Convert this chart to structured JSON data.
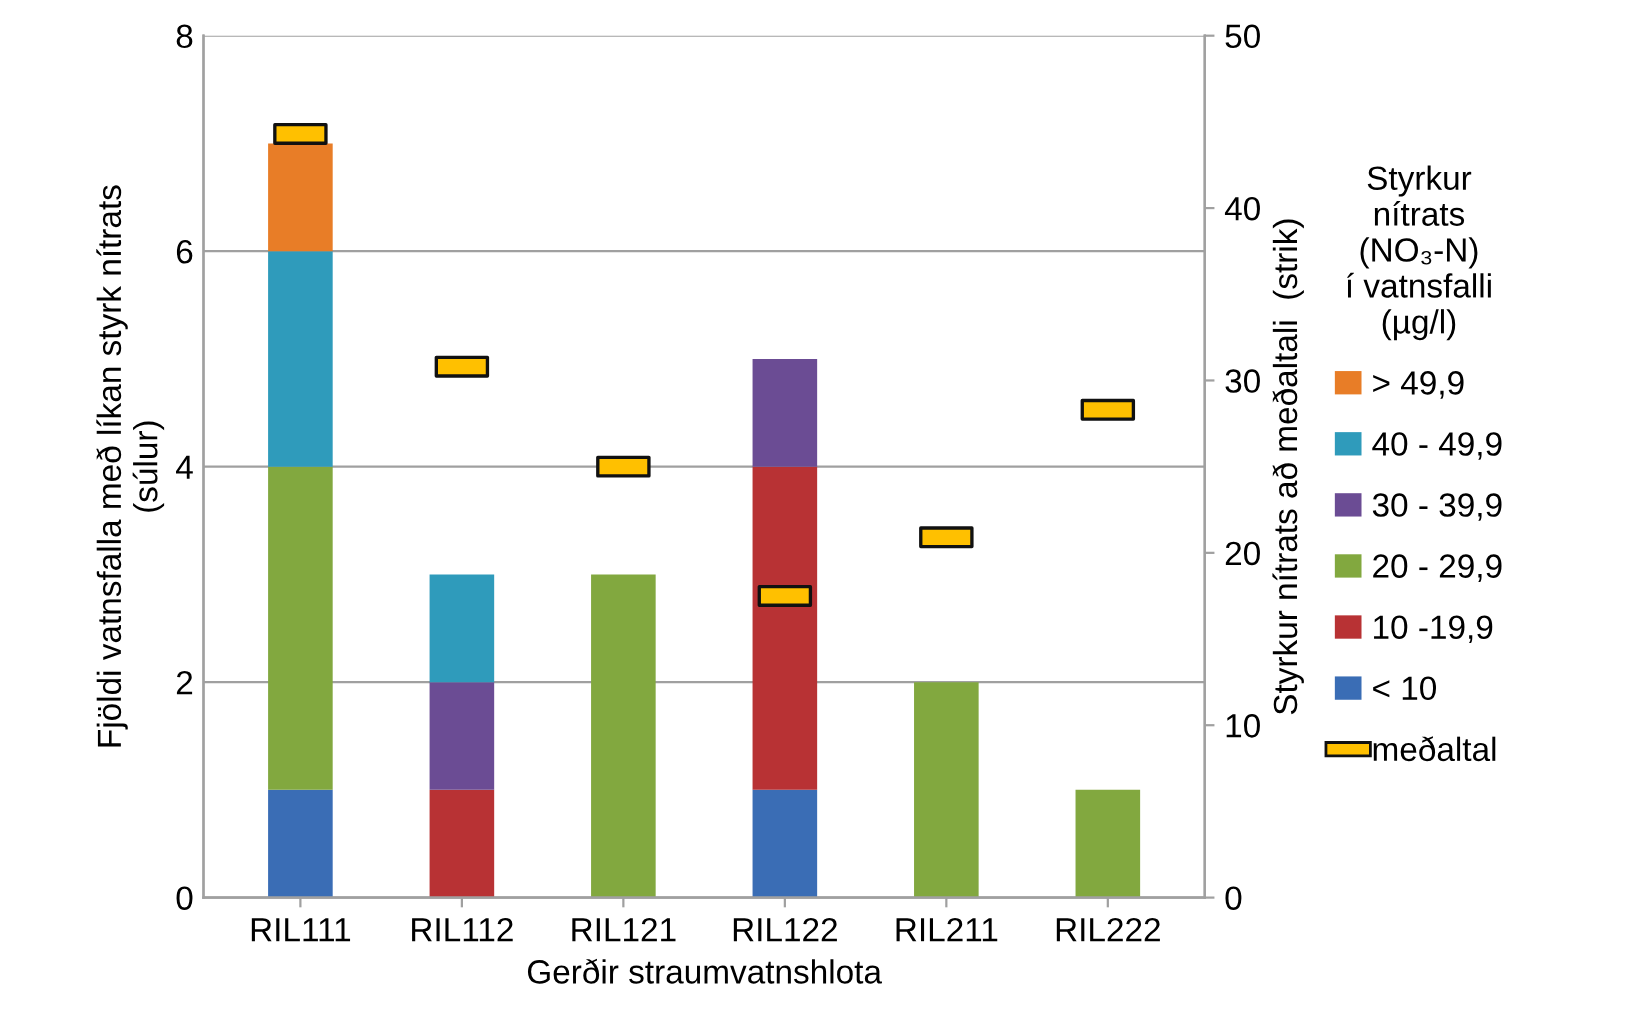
{
  "chart_data": {
    "type": "bar",
    "stacked": true,
    "xlabel": "Gerðir straumvatnshlota",
    "ylabel": "Fjöldi vatnsfalla með líkan styrk nítrats\n(súlur)",
    "y2label": "Styrkur nítrats að meðaltali  (strik)",
    "legend_title": "Styrkur\nnítrats\n(NO₃-N)\ní vatnsfalli\n(µg/l)",
    "categories": [
      "RIL111",
      "RIL112",
      "RIL121",
      "RIL122",
      "RIL211",
      "RIL222"
    ],
    "series": [
      {
        "name": "< 10",
        "color": "#3a6db5",
        "values": [
          1,
          0,
          0,
          1,
          0,
          0
        ]
      },
      {
        "name": "10 -19,9",
        "color": "#b83234",
        "values": [
          0,
          1,
          0,
          3,
          0,
          0
        ]
      },
      {
        "name": "20 - 29,9",
        "color": "#82a83f",
        "values": [
          3,
          0,
          3,
          0,
          2,
          1
        ]
      },
      {
        "name": "30 - 39,9",
        "color": "#6b4c94",
        "values": [
          0,
          1,
          0,
          1,
          0,
          0
        ]
      },
      {
        "name": "40 - 49,9",
        "color": "#2f9bbb",
        "values": [
          2,
          1,
          0,
          0,
          0,
          0
        ]
      },
      {
        "name": "> 49,9",
        "color": "#e87d27",
        "values": [
          1,
          0,
          0,
          0,
          0,
          0
        ]
      },
      {
        "name": "meðaltal",
        "type": "scatter",
        "axis": "y2",
        "color": "#ffc000",
        "values": [
          44.3,
          30.8,
          25,
          17.5,
          20.9,
          28.3
        ]
      }
    ],
    "ylim": [
      0,
      8
    ],
    "yticks": [
      0,
      2,
      4,
      6,
      8
    ],
    "y2lim": [
      0,
      50
    ],
    "y2ticks": [
      0,
      10,
      20,
      30,
      40,
      50
    ],
    "grid": "y",
    "legend": "right"
  }
}
